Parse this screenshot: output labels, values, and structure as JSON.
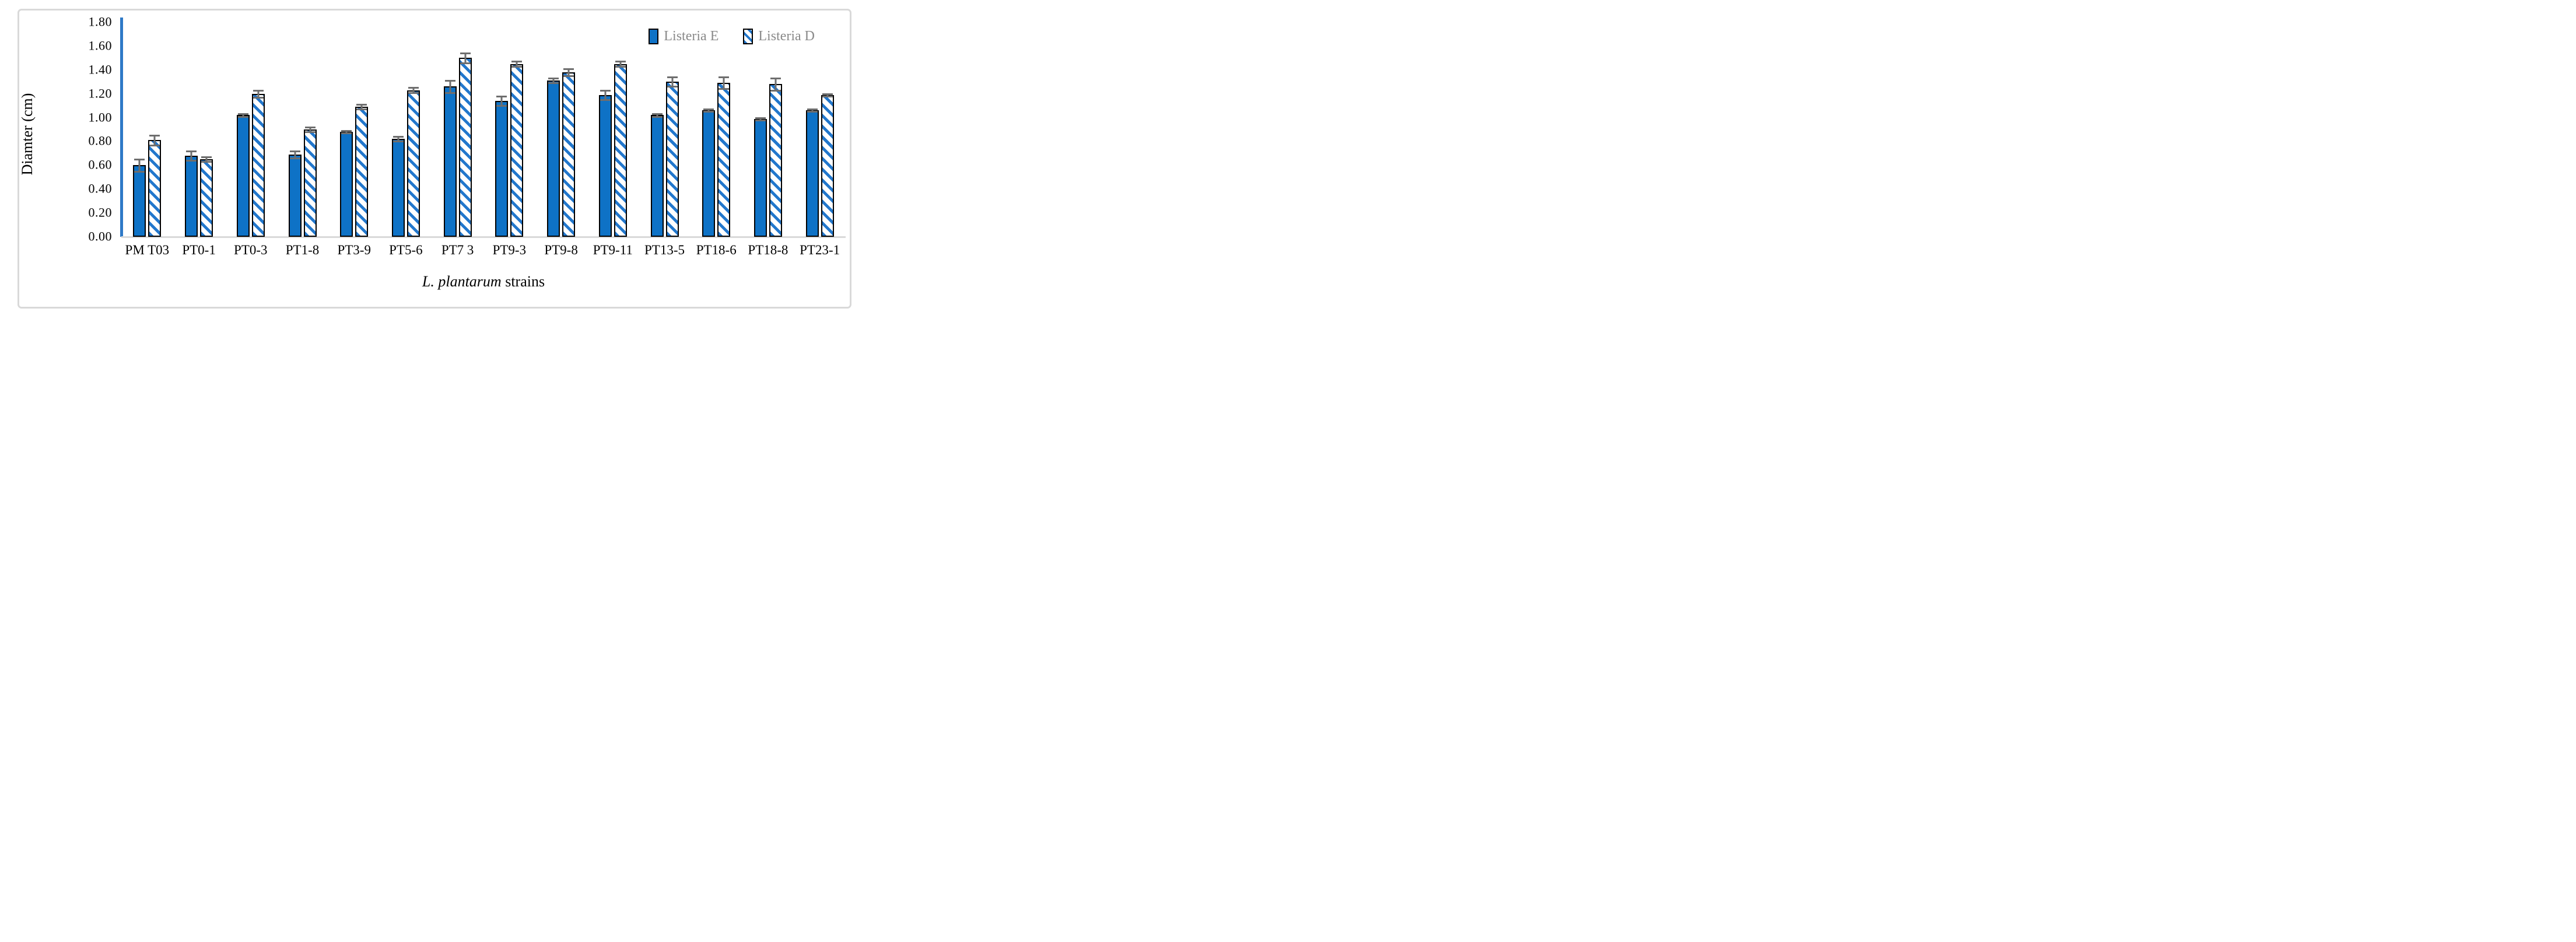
{
  "figure": {
    "x_axis_title_italic": "L. plantarum",
    "x_axis_title_rest": " strains"
  },
  "chart_data": {
    "type": "bar",
    "title": "",
    "categories": [
      "PM T03",
      "PT0-1",
      "PT0-3",
      "PT1-8",
      "PT3-9",
      "PT5-6",
      "PT7 3",
      "PT9-3",
      "PT9-8",
      "PT9-11",
      "PT13-5",
      "PT18-6",
      "PT18-8",
      "PT23-1"
    ],
    "series": [
      {
        "name": "Listeria E",
        "pattern": "solid",
        "values": [
          0.6,
          0.68,
          1.02,
          0.69,
          0.88,
          0.82,
          1.26,
          1.14,
          1.31,
          1.19,
          1.02,
          1.06,
          0.99,
          1.06
        ],
        "errors": [
          0.05,
          0.04,
          0.01,
          0.03,
          0.01,
          0.02,
          0.05,
          0.04,
          0.02,
          0.04,
          0.01,
          0.01,
          0.01,
          0.01
        ]
      },
      {
        "name": "Listeria D",
        "pattern": "hatched",
        "values": [
          0.81,
          0.65,
          1.2,
          0.9,
          1.09,
          1.23,
          1.5,
          1.45,
          1.38,
          1.45,
          1.3,
          1.29,
          1.28,
          1.19
        ],
        "errors": [
          0.04,
          0.02,
          0.03,
          0.02,
          0.02,
          0.02,
          0.04,
          0.02,
          0.03,
          0.02,
          0.04,
          0.05,
          0.05,
          0.01
        ]
      }
    ],
    "xlabel": "L. plantarum strains",
    "ylabel": "Diamter (cm)",
    "ylim": [
      0,
      1.8
    ],
    "ytick_step": 0.2,
    "ytick_labels": [
      "0.00",
      "0.20",
      "0.40",
      "0.60",
      "0.80",
      "1.00",
      "1.20",
      "1.40",
      "1.60",
      "1.80"
    ],
    "grid": false,
    "error_bars": true,
    "legend_position": "top-right"
  },
  "colors": {
    "bar_fill": "#0e72c6",
    "hatch_stripe": "#2277cc",
    "bar_border": "#000000",
    "axis_line": "#2e79c7",
    "baseline": "#d9d9d9",
    "error_bar": "#6e6e6e",
    "legend_text": "#8a8a8a",
    "frame_border": "#d9d9d9",
    "tick_text": "#000000"
  }
}
